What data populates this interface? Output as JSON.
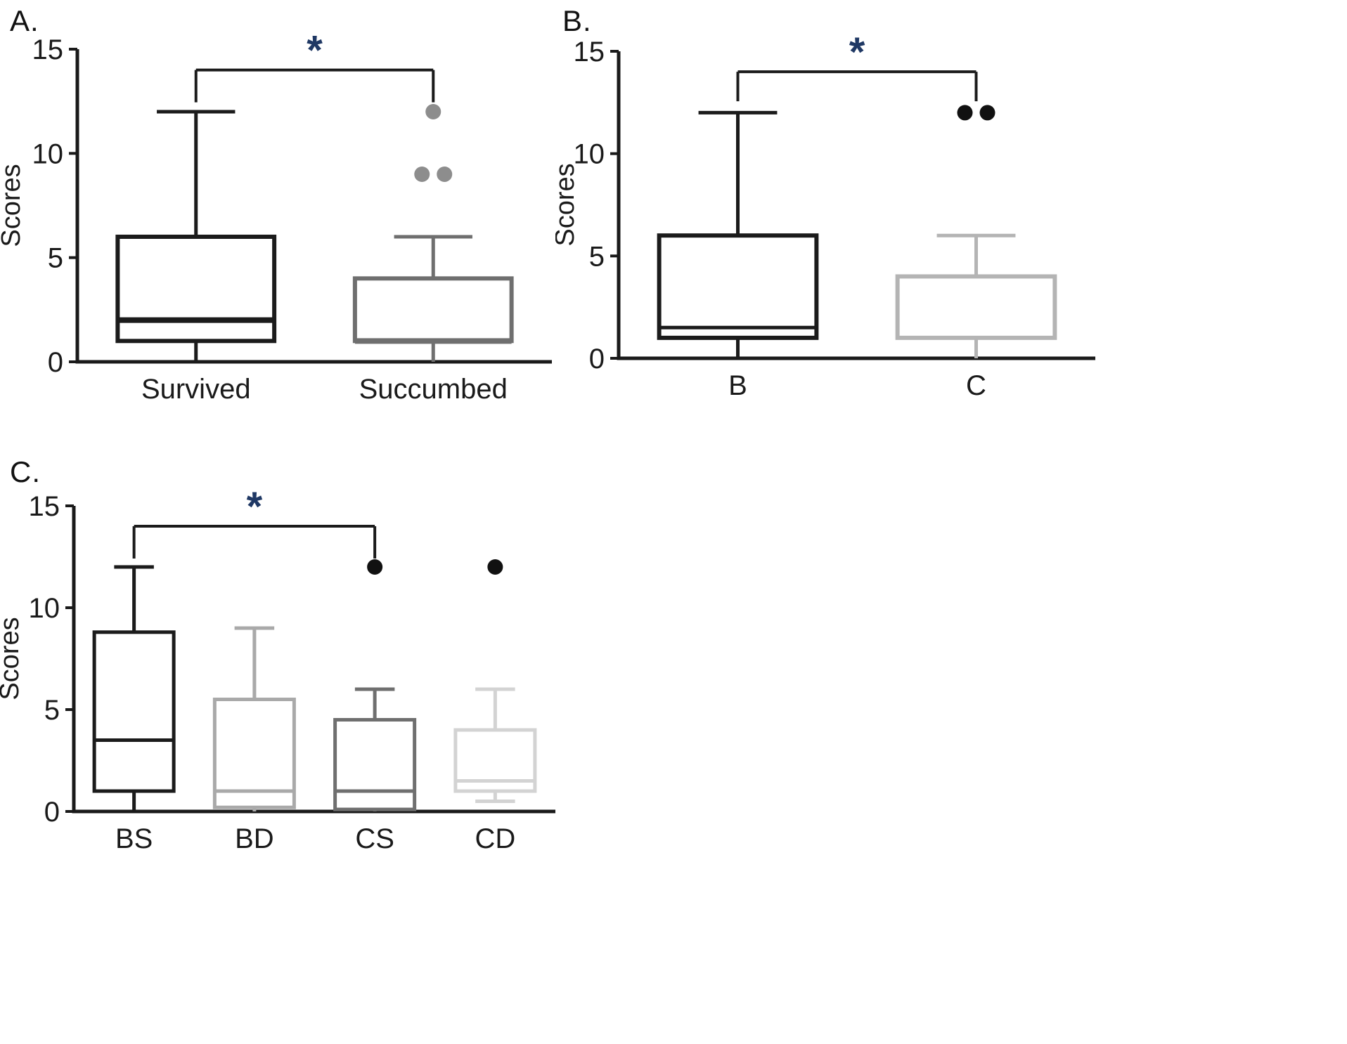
{
  "chart_data": [
    {
      "type": "box",
      "panel_label": "A.",
      "ylabel": "Scores",
      "ylim": [
        0,
        15
      ],
      "yticks": [
        0,
        5,
        10,
        15
      ],
      "categories": [
        "Survived",
        "Succumbed"
      ],
      "boxes": [
        {
          "category": "Survived",
          "whisker_low": 0,
          "q1": 1,
          "median": 2,
          "q3": 6,
          "whisker_high": 12,
          "color": "#1b1b1b",
          "outlier_color": "#1b1b1b",
          "outliers": []
        },
        {
          "category": "Succumbed",
          "whisker_low": 0,
          "q1": 1,
          "median": 1,
          "q3": 4,
          "whisker_high": 6,
          "color": "#6f6f6f",
          "outlier_color": "#8d8d8d",
          "outliers": [
            {
              "value": 12,
              "dx": 0
            },
            {
              "value": 9,
              "dx": -16
            },
            {
              "value": 9,
              "dx": 16
            }
          ]
        }
      ],
      "significance": {
        "from_index": 0,
        "to_index": 1,
        "bar_value": 14,
        "label": "*",
        "label_color": "#1f3864",
        "line_color": "#1b1b1b"
      }
    },
    {
      "type": "box",
      "panel_label": "B.",
      "ylabel": "Scores",
      "ylim": [
        0,
        15
      ],
      "yticks": [
        0,
        5,
        10,
        15
      ],
      "categories": [
        "B",
        "C"
      ],
      "boxes": [
        {
          "category": "B",
          "whisker_low": 0,
          "q1": 1,
          "median": 1.5,
          "q3": 6,
          "whisker_high": 12,
          "color": "#1b1b1b",
          "outlier_color": "#1b1b1b",
          "outliers": []
        },
        {
          "category": "C",
          "whisker_low": 0,
          "q1": 1,
          "median": 1,
          "q3": 4,
          "whisker_high": 6,
          "color": "#b4b4b4",
          "outlier_color": "#111111",
          "outliers": [
            {
              "value": 12,
              "dx": -16
            },
            {
              "value": 12,
              "dx": 16
            }
          ]
        }
      ],
      "significance": {
        "from_index": 0,
        "to_index": 1,
        "bar_value": 14,
        "label": "*",
        "label_color": "#1f3864",
        "line_color": "#1b1b1b"
      }
    },
    {
      "type": "box",
      "panel_label": "C.",
      "ylabel": "Scores",
      "ylim": [
        0,
        15
      ],
      "yticks": [
        0,
        5,
        10,
        15
      ],
      "categories": [
        "BS",
        "BD",
        "CS",
        "CD"
      ],
      "boxes": [
        {
          "category": "BS",
          "whisker_low": 0,
          "q1": 1,
          "median": 3.5,
          "q3": 8.8,
          "whisker_high": 12,
          "color": "#1b1b1b",
          "outlier_color": "#111111",
          "outliers": []
        },
        {
          "category": "BD",
          "whisker_low": 0,
          "q1": 0.2,
          "median": 1,
          "q3": 5.5,
          "whisker_high": 9,
          "color": "#a9a9a9",
          "outlier_color": "#111111",
          "outliers": []
        },
        {
          "category": "CS",
          "whisker_low": 0,
          "q1": 0.1,
          "median": 1,
          "q3": 4.5,
          "whisker_high": 6,
          "color": "#6f6f6f",
          "outlier_color": "#111111",
          "outliers": [
            {
              "value": 12,
              "dx": 0
            }
          ]
        },
        {
          "category": "CD",
          "whisker_low": 0.5,
          "q1": 1,
          "median": 1.5,
          "q3": 4,
          "whisker_high": 6,
          "color": "#d3d3d3",
          "outlier_color": "#111111",
          "outliers": [
            {
              "value": 12,
              "dx": 0
            }
          ]
        }
      ],
      "significance": {
        "from_index": 0,
        "to_index": 2,
        "bar_value": 14,
        "label": "*",
        "label_color": "#1f3864",
        "line_color": "#1b1b1b"
      }
    }
  ]
}
